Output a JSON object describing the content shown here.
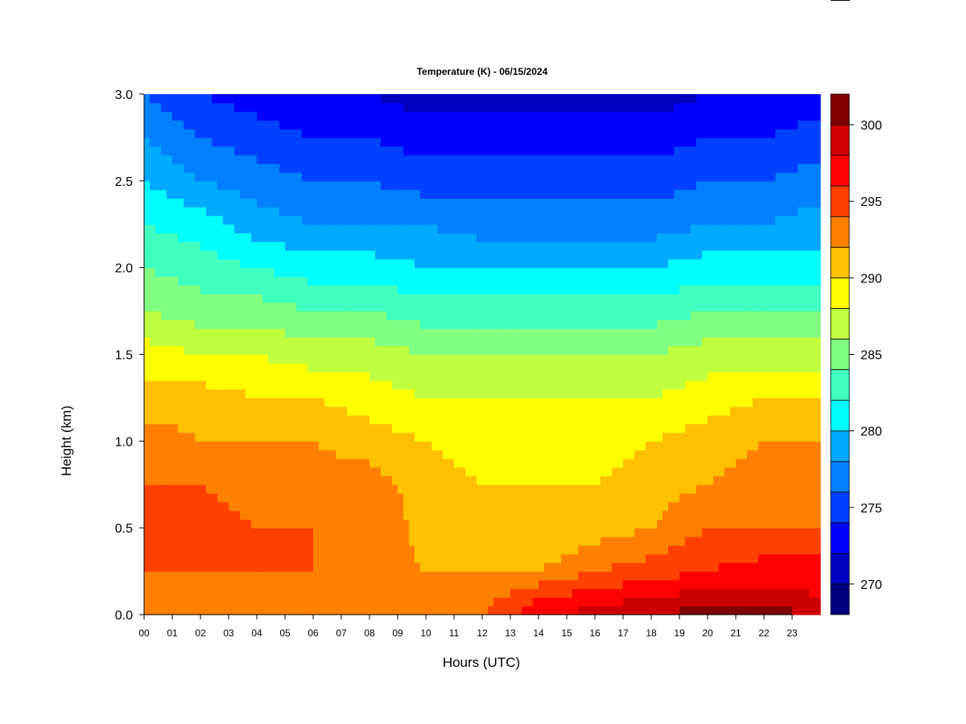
{
  "chart_data": {
    "type": "heatmap",
    "title": "Temperature (K) - 06/15/2024",
    "xlabel": "Hours (UTC)",
    "ylabel": "Height (km)",
    "x_ticks": [
      "00",
      "01",
      "02",
      "03",
      "04",
      "05",
      "06",
      "07",
      "08",
      "09",
      "10",
      "11",
      "12",
      "13",
      "14",
      "15",
      "16",
      "17",
      "18",
      "19",
      "20",
      "21",
      "22",
      "23"
    ],
    "xlim": [
      0,
      24
    ],
    "y_ticks": [
      "0.0",
      "0.5",
      "1.0",
      "1.5",
      "2.0",
      "2.5",
      "3.0"
    ],
    "ylim": [
      0,
      3.0
    ],
    "colorbar": {
      "ticks": [
        "270",
        "275",
        "280",
        "285",
        "290",
        "295",
        "300"
      ],
      "range": [
        268,
        302
      ],
      "levels": [
        268,
        270,
        272,
        274,
        276,
        278,
        280,
        282,
        284,
        286,
        288,
        290,
        292,
        294,
        296,
        298,
        300,
        302
      ],
      "colors": [
        "#00007F",
        "#0000BF",
        "#0000FF",
        "#0040FF",
        "#0080FF",
        "#00AAFF",
        "#00FFFF",
        "#40FFBF",
        "#80FF80",
        "#BFFF40",
        "#FFFF00",
        "#FFC000",
        "#FF8000",
        "#FF4000",
        "#FF0000",
        "#CC0000",
        "#800000"
      ]
    },
    "height_km": [
      0.0,
      0.1,
      0.25,
      0.5,
      0.75,
      1.0,
      1.25,
      1.5,
      1.75,
      2.0,
      2.25,
      2.5,
      2.75,
      3.0
    ],
    "hours": [
      0,
      2,
      4,
      6,
      8,
      10,
      12,
      14,
      16,
      18,
      20,
      22,
      24
    ],
    "temperature_K": [
      [
        293,
        292,
        293,
        293,
        292,
        293,
        294,
        297,
        299,
        300,
        301,
        301,
        300
      ],
      [
        293,
        293,
        293,
        293,
        292,
        292,
        293,
        296,
        297,
        298,
        299,
        299,
        298
      ],
      [
        294,
        294,
        294,
        294,
        293,
        292,
        292,
        292,
        294,
        295,
        296,
        297,
        297
      ],
      [
        295,
        295,
        294,
        294,
        294,
        291,
        290,
        290,
        291,
        292,
        294,
        294,
        294
      ],
      [
        294,
        294,
        293,
        293,
        293,
        291,
        290,
        290,
        290,
        291,
        292,
        293,
        293
      ],
      [
        293,
        292,
        292,
        292,
        291,
        290,
        289,
        289,
        289,
        290,
        291,
        292,
        292
      ],
      [
        291,
        291,
        290,
        290,
        289,
        288,
        288,
        288,
        288,
        288,
        289,
        290,
        290
      ],
      [
        289,
        288,
        288,
        287,
        287,
        286,
        286,
        286,
        286,
        286,
        287,
        287,
        287
      ],
      [
        286,
        285,
        285,
        284,
        284,
        283,
        283,
        283,
        283,
        283,
        284,
        284,
        284
      ],
      [
        284,
        283,
        282,
        281,
        281,
        280,
        280,
        280,
        280,
        280,
        281,
        281,
        281
      ],
      [
        282,
        281,
        279,
        278,
        278,
        278,
        277,
        277,
        277,
        277,
        278,
        278,
        279
      ],
      [
        280,
        278,
        277,
        276,
        276,
        275,
        275,
        275,
        275,
        275,
        276,
        276,
        277
      ],
      [
        278,
        276,
        275,
        274,
        274,
        273,
        273,
        273,
        273,
        273,
        274,
        274,
        275
      ],
      [
        276,
        274,
        273,
        272,
        272,
        271,
        271,
        271,
        271,
        271,
        272,
        272,
        273
      ]
    ],
    "grid": false,
    "legend": "colorbar-right"
  }
}
